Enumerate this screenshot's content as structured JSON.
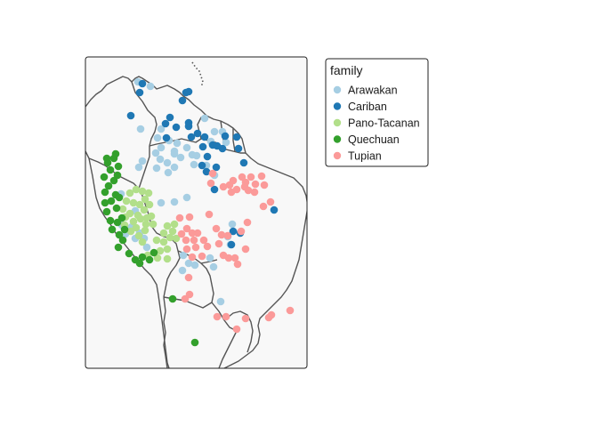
{
  "map": {
    "background": "#f8f8f8",
    "frame_color": "#222222",
    "border_color": "#555555"
  },
  "legend": {
    "title": "family",
    "items": [
      {
        "key": "arawakan",
        "label": "Arawakan",
        "color": "#a6cee3"
      },
      {
        "key": "cariban",
        "label": "Cariban",
        "color": "#1f78b4"
      },
      {
        "key": "pano",
        "label": "Pano-Tacanan",
        "color": "#b2df8a"
      },
      {
        "key": "quechuan",
        "label": "Quechuan",
        "color": "#33a02c"
      },
      {
        "key": "tupian",
        "label": "Tupian",
        "color": "#fb9a99"
      }
    ]
  }
}
